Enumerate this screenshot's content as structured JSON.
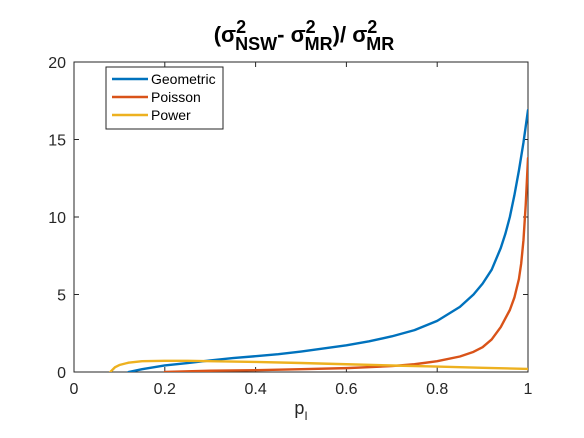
{
  "chart_data": {
    "type": "line",
    "title": {
      "parts": [
        {
          "text": "(",
          "kind": "base"
        },
        {
          "text": "σ",
          "kind": "base"
        },
        {
          "text": "2",
          "kind": "sup"
        },
        {
          "text": "NSW",
          "kind": "sub"
        },
        {
          "text": "- ",
          "kind": "base"
        },
        {
          "text": "σ",
          "kind": "base"
        },
        {
          "text": "2",
          "kind": "sup"
        },
        {
          "text": "MR",
          "kind": "sub"
        },
        {
          "text": ")/ ",
          "kind": "base"
        },
        {
          "text": "σ",
          "kind": "base"
        },
        {
          "text": "2",
          "kind": "sup"
        },
        {
          "text": "MR",
          "kind": "sub"
        }
      ]
    },
    "xlabel": {
      "base": "p",
      "sub": "I"
    },
    "ylabel": "",
    "xlim": [
      0,
      1
    ],
    "ylim": [
      0,
      20
    ],
    "xticks": [
      0,
      0.2,
      0.4,
      0.6,
      0.8,
      1
    ],
    "xtick_labels": [
      "0",
      "0.2",
      "0.4",
      "0.6",
      "0.8",
      "1"
    ],
    "yticks": [
      0,
      5,
      10,
      15,
      20
    ],
    "ytick_labels": [
      "0",
      "5",
      "10",
      "15",
      "20"
    ],
    "grid": false,
    "legend_position": "top-left",
    "series": [
      {
        "name": "Geometric",
        "color": "#0072BD",
        "x": [
          0.12,
          0.15,
          0.2,
          0.25,
          0.3,
          0.35,
          0.4,
          0.45,
          0.5,
          0.55,
          0.6,
          0.65,
          0.7,
          0.75,
          0.8,
          0.85,
          0.88,
          0.9,
          0.92,
          0.94,
          0.95,
          0.96,
          0.97,
          0.98,
          0.99,
          1.0
        ],
        "y": [
          0.0,
          0.18,
          0.42,
          0.58,
          0.75,
          0.9,
          1.02,
          1.15,
          1.32,
          1.52,
          1.72,
          1.98,
          2.3,
          2.7,
          3.3,
          4.2,
          5.0,
          5.7,
          6.6,
          8.0,
          8.9,
          10.0,
          11.4,
          13.0,
          14.8,
          16.9
        ]
      },
      {
        "name": "Poisson",
        "color": "#D95319",
        "x": [
          0.2,
          0.3,
          0.4,
          0.5,
          0.6,
          0.7,
          0.75,
          0.8,
          0.85,
          0.88,
          0.9,
          0.92,
          0.94,
          0.96,
          0.97,
          0.98,
          0.985,
          0.99,
          0.995,
          1.0
        ],
        "y": [
          0.0,
          0.08,
          0.12,
          0.18,
          0.25,
          0.38,
          0.5,
          0.7,
          1.0,
          1.3,
          1.6,
          2.1,
          2.9,
          4.0,
          4.8,
          6.0,
          7.0,
          8.5,
          10.8,
          13.8
        ]
      },
      {
        "name": "Power",
        "color": "#EDB120",
        "x": [
          0.08,
          0.09,
          0.1,
          0.12,
          0.15,
          0.2,
          0.25,
          0.3,
          0.4,
          0.5,
          0.6,
          0.7,
          0.8,
          0.9,
          1.0
        ],
        "y": [
          0.0,
          0.3,
          0.45,
          0.6,
          0.7,
          0.72,
          0.72,
          0.7,
          0.65,
          0.58,
          0.5,
          0.42,
          0.35,
          0.27,
          0.2
        ]
      }
    ]
  }
}
